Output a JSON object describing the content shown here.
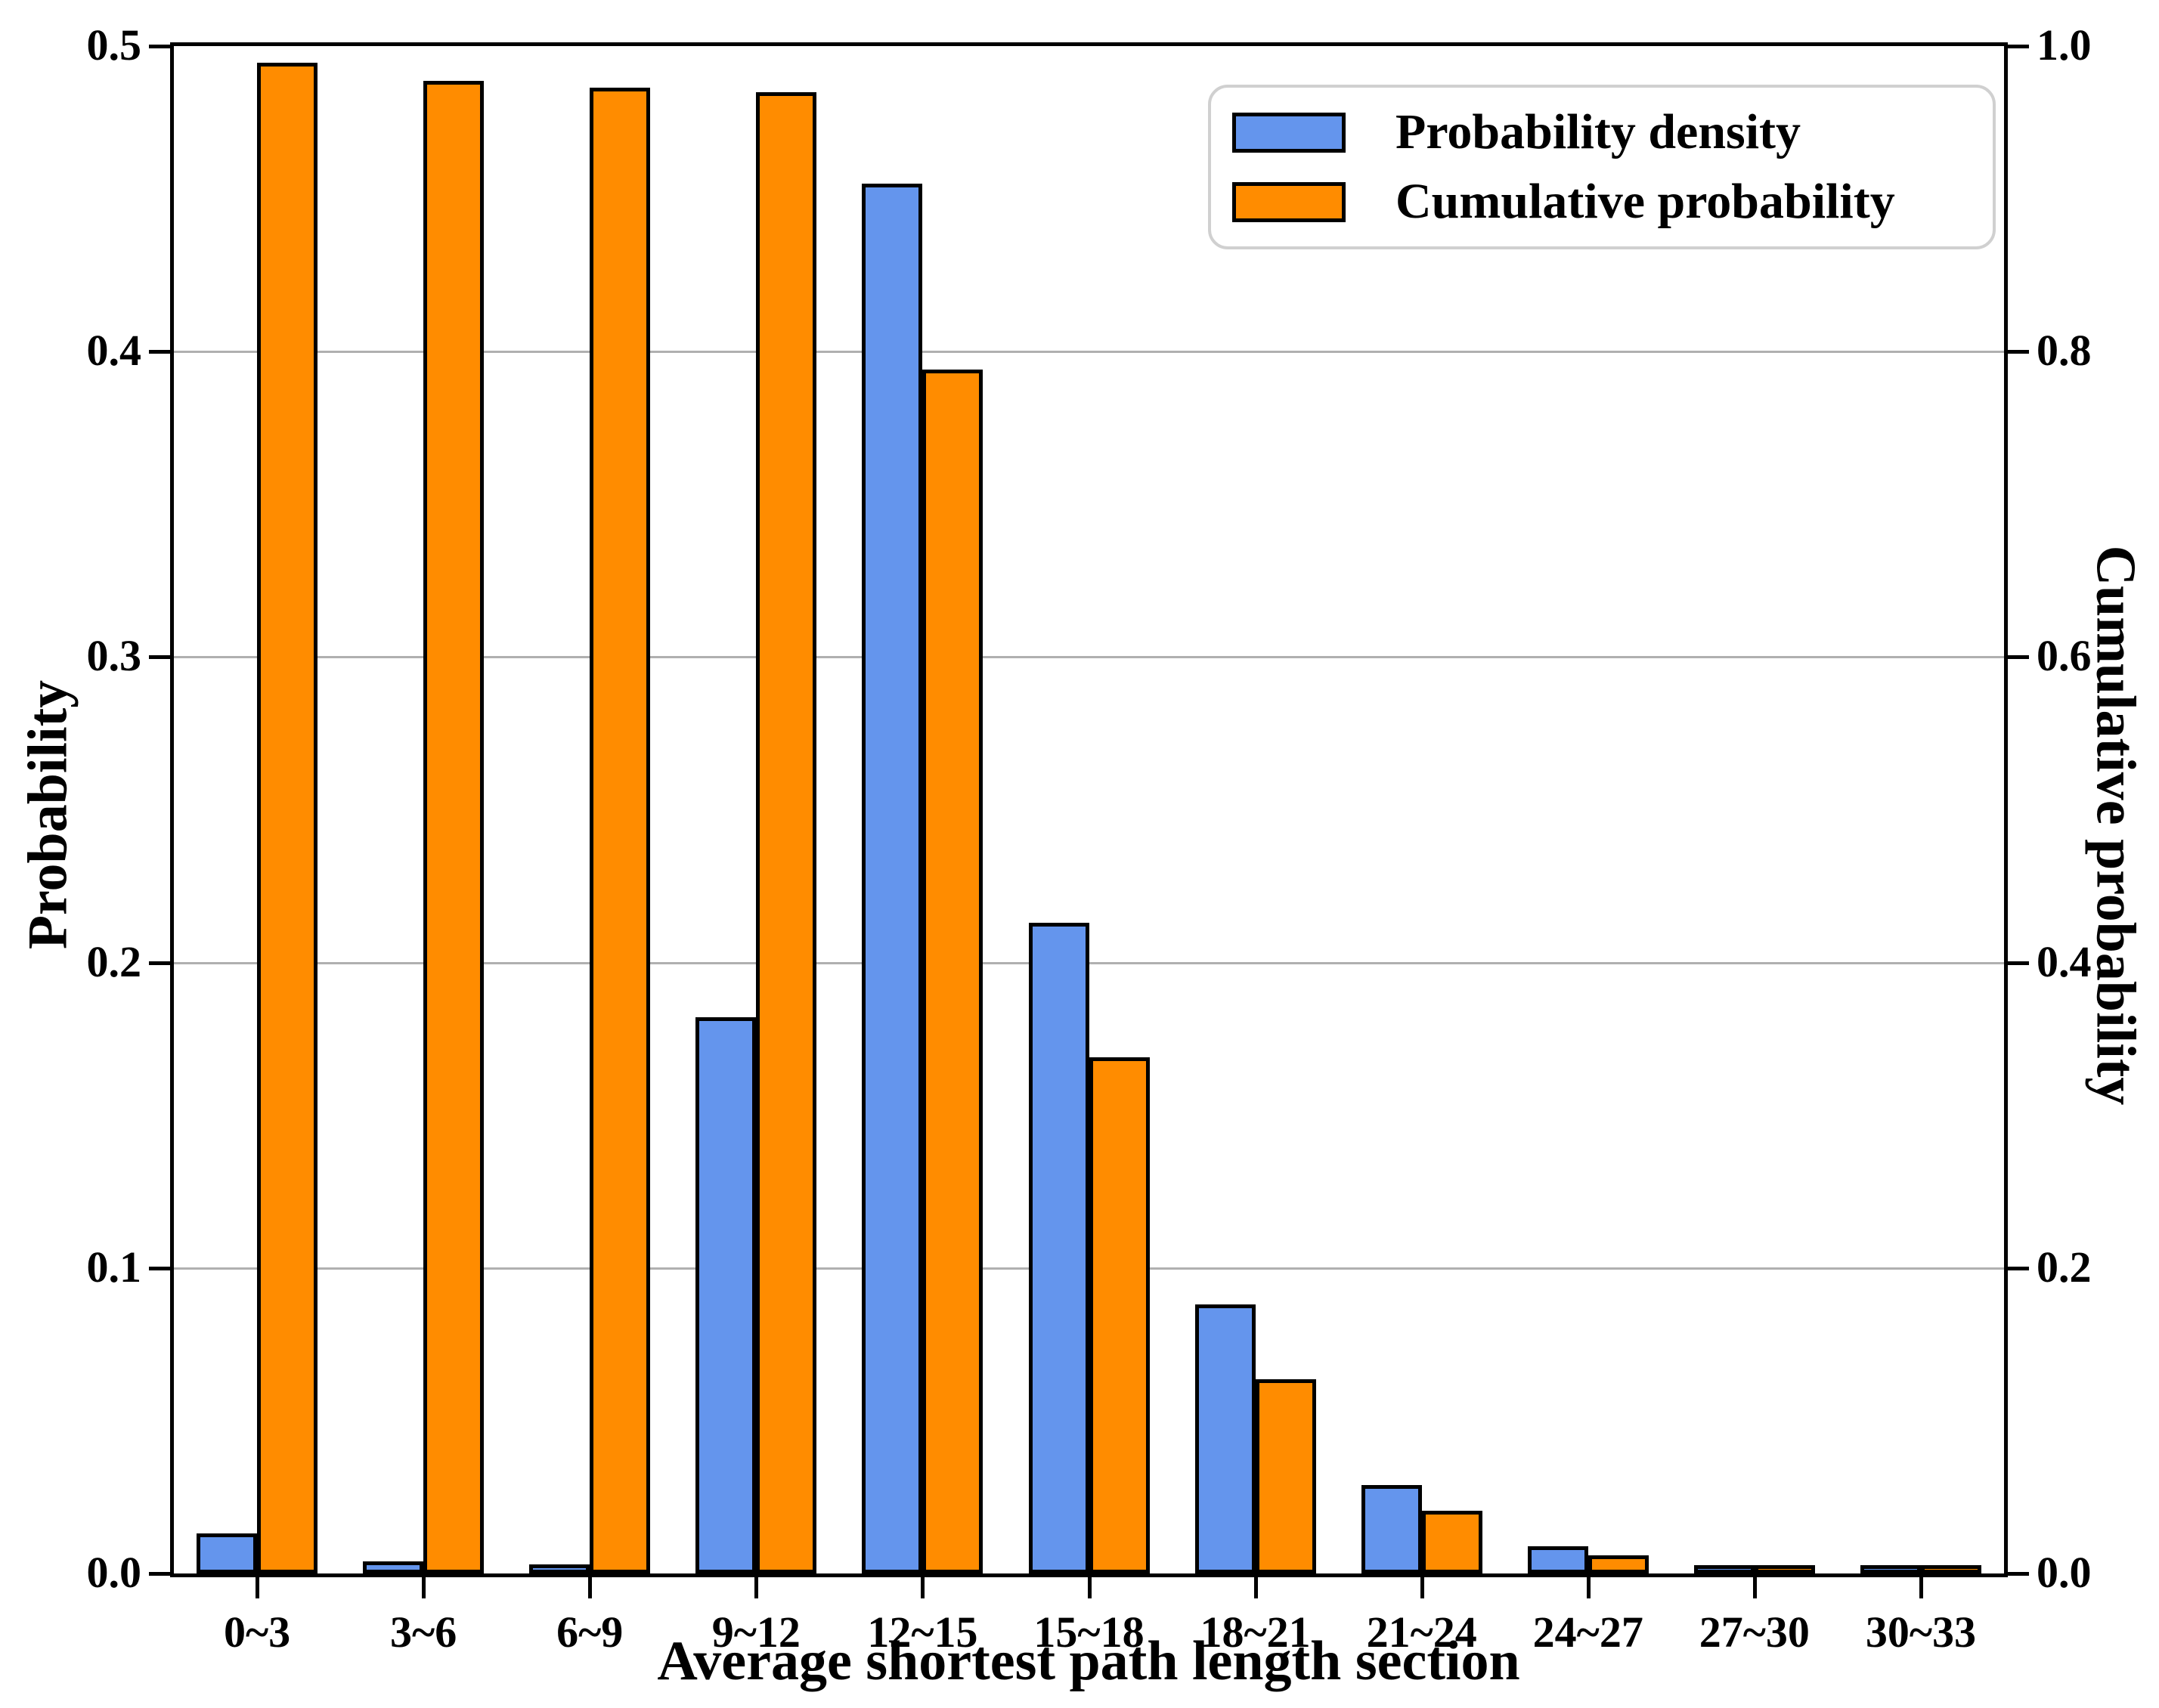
{
  "chart_data": {
    "type": "bar",
    "title": "",
    "categories": [
      "0~3",
      "3~6",
      "6~9",
      "9~12",
      "12~15",
      "15~18",
      "18~21",
      "21~24",
      "24~27",
      "27~30",
      "30~33"
    ],
    "series": [
      {
        "name": "Probability density",
        "axis": "left",
        "color": "#6495ED",
        "values": [
          0.013,
          0.004,
          0.003,
          0.182,
          0.455,
          0.213,
          0.088,
          0.029,
          0.009,
          0.002,
          0.001
        ]
      },
      {
        "name": "Cumulative probability",
        "axis": "right",
        "color": "#FF8C00",
        "values": [
          0.989,
          0.977,
          0.973,
          0.97,
          0.788,
          0.338,
          0.127,
          0.041,
          0.012,
          0.004,
          0.002
        ]
      }
    ],
    "xlabel": "Average shortest path length section",
    "ylabel_left": "Probability",
    "ylabel_right": "Cumulative probability",
    "y_left": {
      "min": 0,
      "max": 0.5,
      "ticks": [
        "0.0",
        "0.1",
        "0.2",
        "0.3",
        "0.4",
        "0.5"
      ]
    },
    "y_right": {
      "min": 0,
      "max": 1.0,
      "ticks": [
        "0.0",
        "0.2",
        "0.4",
        "0.6",
        "0.8",
        "1.0"
      ]
    },
    "grid": "horizontal",
    "grid_color": "#B0B0B0",
    "bar_edge_color": "#000000",
    "legend_position": "upper right",
    "legend_border_color": "#D0D0D0"
  }
}
